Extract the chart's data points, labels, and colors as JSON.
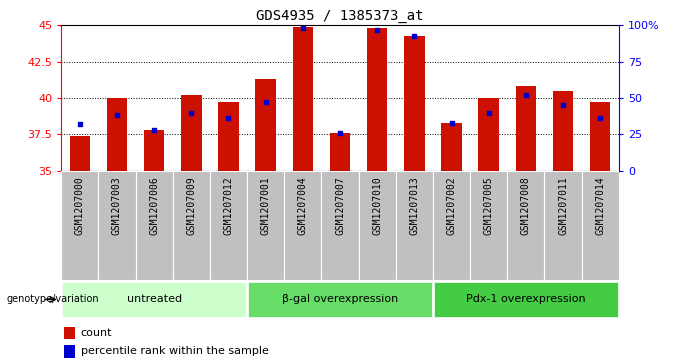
{
  "title": "GDS4935 / 1385373_at",
  "samples": [
    "GSM1207000",
    "GSM1207003",
    "GSM1207006",
    "GSM1207009",
    "GSM1207012",
    "GSM1207001",
    "GSM1207004",
    "GSM1207007",
    "GSM1207010",
    "GSM1207013",
    "GSM1207002",
    "GSM1207005",
    "GSM1207008",
    "GSM1207011",
    "GSM1207014"
  ],
  "counts": [
    37.4,
    40.0,
    37.8,
    40.2,
    39.7,
    41.3,
    44.9,
    37.6,
    44.8,
    44.3,
    38.3,
    40.0,
    40.8,
    40.5,
    39.7
  ],
  "percentile_vals": [
    32,
    38,
    28,
    40,
    36,
    47,
    98,
    26,
    97,
    93,
    33,
    40,
    52,
    45,
    36
  ],
  "groups": [
    {
      "label": "untreated",
      "start": 0,
      "end": 5,
      "color": "#ccffcc"
    },
    {
      "label": "β-gal overexpression",
      "start": 5,
      "end": 10,
      "color": "#66dd66"
    },
    {
      "label": "Pdx-1 overexpression",
      "start": 10,
      "end": 15,
      "color": "#44cc44"
    }
  ],
  "ylim_left": [
    35,
    45
  ],
  "ylim_right": [
    0,
    100
  ],
  "bar_color": "#cc1100",
  "bar_width": 0.55,
  "blue_color": "#0000cc",
  "blue_size": 10,
  "label_fontsize": 7,
  "title_fontsize": 10,
  "legend_label_count": "count",
  "legend_label_percentile": "percentile rank within the sample",
  "genotype_label": "genotype/variation",
  "sample_box_color": "#c0c0c0",
  "grid_yticks": [
    37.5,
    40.0,
    42.5
  ],
  "all_yticks": [
    35,
    37.5,
    40.0,
    42.5,
    45
  ],
  "right_yticks": [
    0,
    25,
    50,
    75,
    100
  ],
  "right_ylabels": [
    "0",
    "25",
    "50",
    "75",
    "100%"
  ]
}
